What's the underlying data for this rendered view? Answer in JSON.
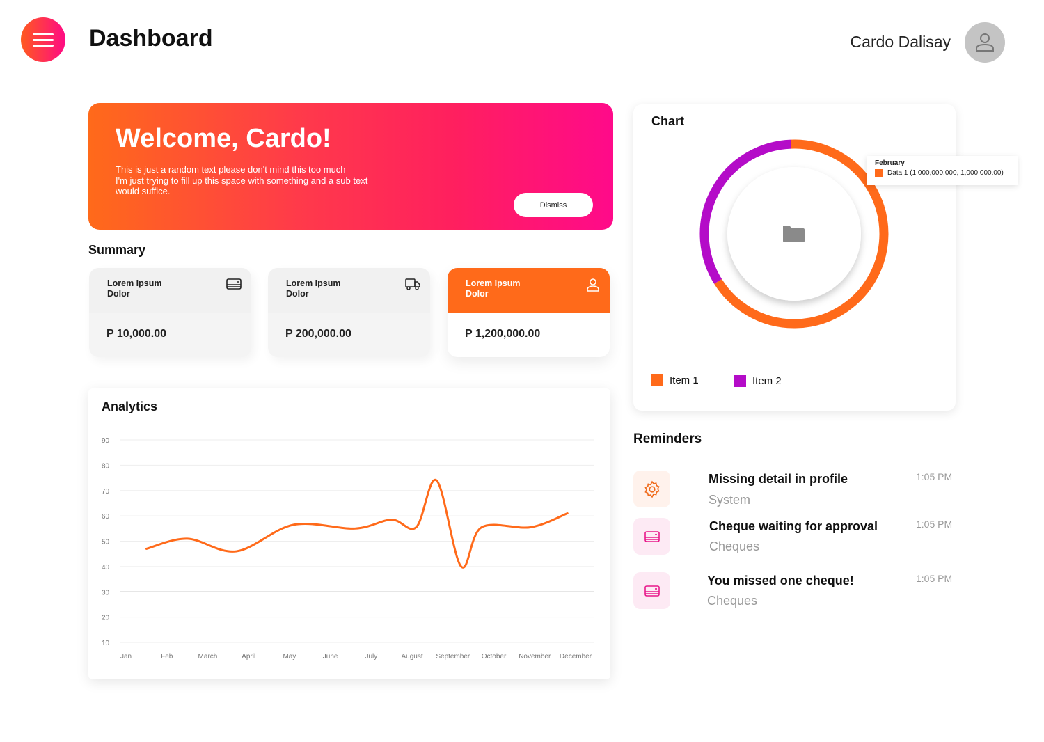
{
  "header": {
    "title": "Dashboard",
    "user_name": "Cardo Dalisay",
    "menu_icon": "hamburger-icon",
    "avatar_icon": "user-icon"
  },
  "welcome": {
    "title": "Welcome, Cardo!",
    "line1": "This is just a random text please don't mind this too much",
    "line2": "I'm just trying to fill up this space with something and a sub text",
    "line3": "would suffice.",
    "dismiss_label": "Dismiss"
  },
  "summary": {
    "title": "Summary",
    "cards": [
      {
        "label1": "Lorem Ipsum",
        "label2": "Dolor",
        "amount": "P 10,000.00",
        "icon": "card-icon"
      },
      {
        "label1": "Lorem Ipsum",
        "label2": "Dolor",
        "amount": "P 200,000.00",
        "icon": "truck-icon"
      },
      {
        "label1": "Lorem Ipsum",
        "label2": "Dolor",
        "amount": "P 1,200,000.00",
        "icon": "user-icon"
      }
    ]
  },
  "chart_data": [
    {
      "type": "line",
      "title": "Analytics",
      "xlabel": "",
      "ylabel": "",
      "categories": [
        "Jan",
        "Feb",
        "March",
        "April",
        "May",
        "June",
        "July",
        "August",
        "September",
        "October",
        "November",
        "December"
      ],
      "yticks": [
        90,
        80,
        70,
        60,
        50,
        40,
        30,
        20,
        10
      ],
      "ylim": [
        10,
        90
      ],
      "grid": true,
      "color": "#ff6a1a",
      "points": [
        [
          0.5,
          47
        ],
        [
          1.5,
          51
        ],
        [
          2.7,
          46
        ],
        [
          4.1,
          56.5
        ],
        [
          5.6,
          55
        ],
        [
          6.5,
          58.5
        ],
        [
          7.1,
          55.5
        ],
        [
          7.6,
          74
        ],
        [
          8.2,
          40
        ],
        [
          8.7,
          55.5
        ],
        [
          9.9,
          55.5
        ],
        [
          10.8,
          61
        ]
      ]
    },
    {
      "type": "pie",
      "title": "Chart",
      "legend": "bottom",
      "series": [
        {
          "name": "Item 1",
          "value": 2,
          "color": "#ff6a1a"
        },
        {
          "name": "Item 2",
          "value": 1,
          "color": "#b40cc8"
        }
      ],
      "tooltip": {
        "title": "February",
        "text": "Data 1 (1,000,000.000, 1,000,000.00)"
      }
    }
  ],
  "reminders": {
    "title": "Reminders",
    "items": [
      {
        "title": "Missing detail in profile",
        "category": "System",
        "time": "1:05 PM",
        "icon": "gear-icon"
      },
      {
        "title": "Cheque waiting for approval",
        "category": "Cheques",
        "time": "1:05 PM",
        "icon": "card-icon"
      },
      {
        "title": "You missed one cheque!",
        "category": "Cheques",
        "time": "1:05 PM",
        "icon": "card-icon"
      }
    ]
  }
}
